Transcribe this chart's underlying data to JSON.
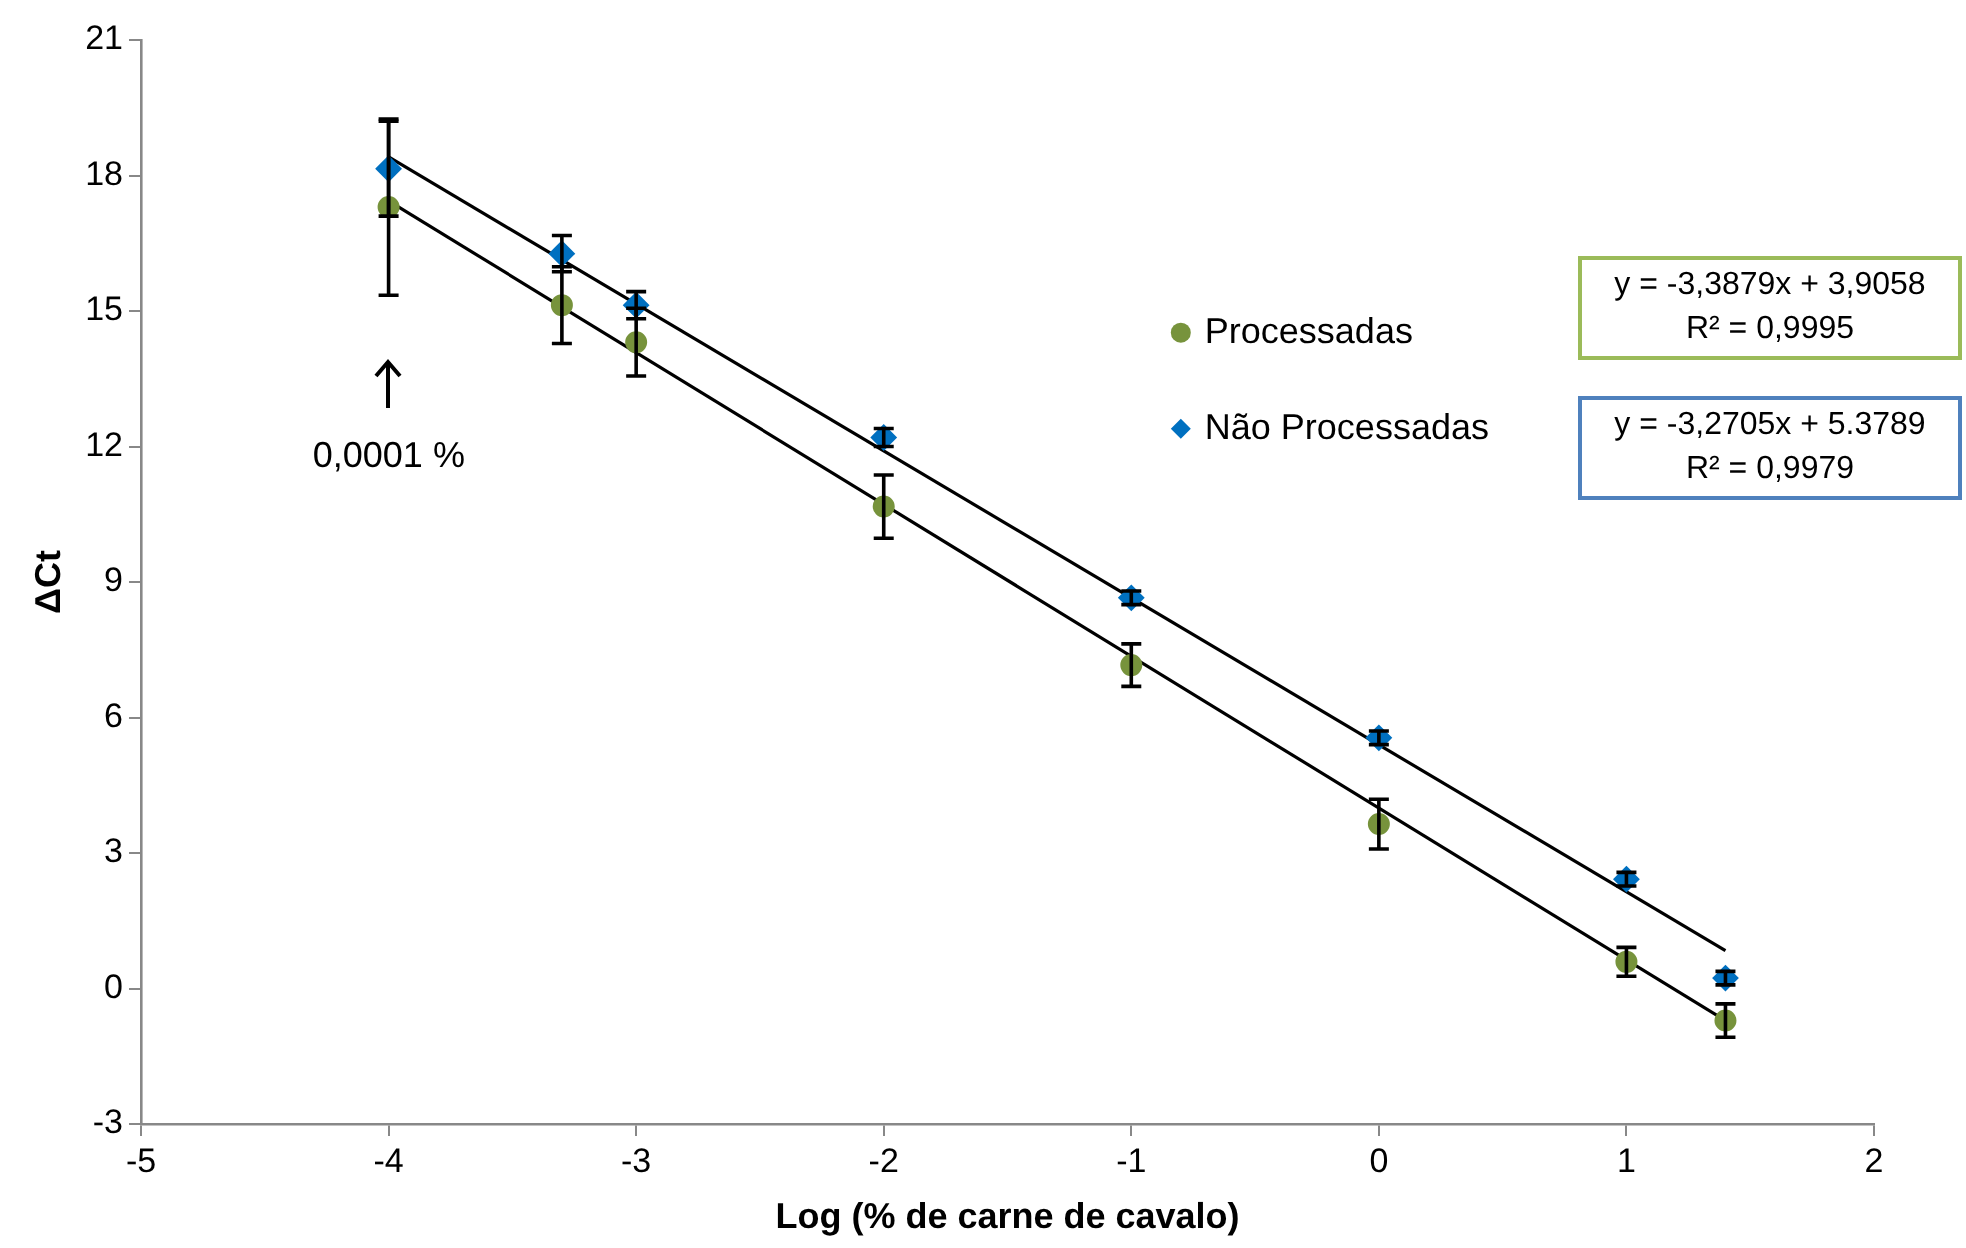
{
  "chart_data": {
    "type": "scatter",
    "xlabel": "Log (% de carne de cavalo)",
    "ylabel": "ΔCt",
    "xlim": [
      -5,
      2
    ],
    "xticks": [
      -5,
      -4,
      -3,
      -2,
      -1,
      0,
      1,
      2
    ],
    "ylim": [
      -3,
      21
    ],
    "yticks": [
      -3,
      0,
      3,
      6,
      9,
      12,
      15,
      18,
      21
    ],
    "legend": "right",
    "grid": false,
    "series": [
      {
        "name": "Processadas",
        "color": "#77933c",
        "marker": "circle",
        "x": [
          -4,
          -3.3,
          -3,
          -2,
          -1,
          0,
          1,
          1.4
        ],
        "values": [
          17.3,
          15.13,
          14.31,
          10.67,
          7.16,
          3.64,
          0.59,
          -0.71
        ],
        "errors": [
          1.95,
          0.85,
          0.75,
          0.7,
          0.47,
          0.55,
          0.32,
          0.37
        ]
      },
      {
        "name": "Não Processadas",
        "color": "#0070c0",
        "marker": "diamond",
        "x": [
          -4,
          -3.3,
          -3,
          -2,
          -1,
          0,
          1,
          1.4
        ],
        "values": [
          18.15,
          16.27,
          15.13,
          12.2,
          8.65,
          5.55,
          2.42,
          0.23
        ],
        "errors": [
          1.05,
          0.4,
          0.3,
          0.2,
          0.15,
          0.15,
          0.15,
          0.15
        ]
      },
      {
        "type": "line",
        "color": "#000000",
        "marker": "none",
        "x": [
          -4,
          1.4
        ],
        "values": [
          17.44,
          -0.71
        ]
      },
      {
        "type": "line",
        "color": "#000000",
        "marker": "none",
        "x": [
          -4,
          1.4
        ],
        "values": [
          18.41,
          0.84
        ]
      }
    ],
    "annotations": [
      "0,0001 %",
      "y = -3,3879x + 3,9058\nR² = 0,9995",
      "y = -3,2705x + 5.3789\nR² = 0,9979"
    ]
  }
}
